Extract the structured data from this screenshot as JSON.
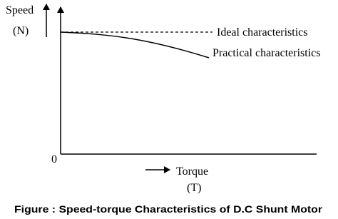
{
  "axis": {
    "y_label": "Speed",
    "y_unit": "(N)",
    "origin": "0",
    "x_label": "Torque",
    "x_unit": "(T)"
  },
  "curves": {
    "ideal": "Ideal characteristics",
    "practical": "Practical characteristics"
  },
  "caption": "Figure : Speed-torque Characteristics of D.C Shunt Motor"
}
